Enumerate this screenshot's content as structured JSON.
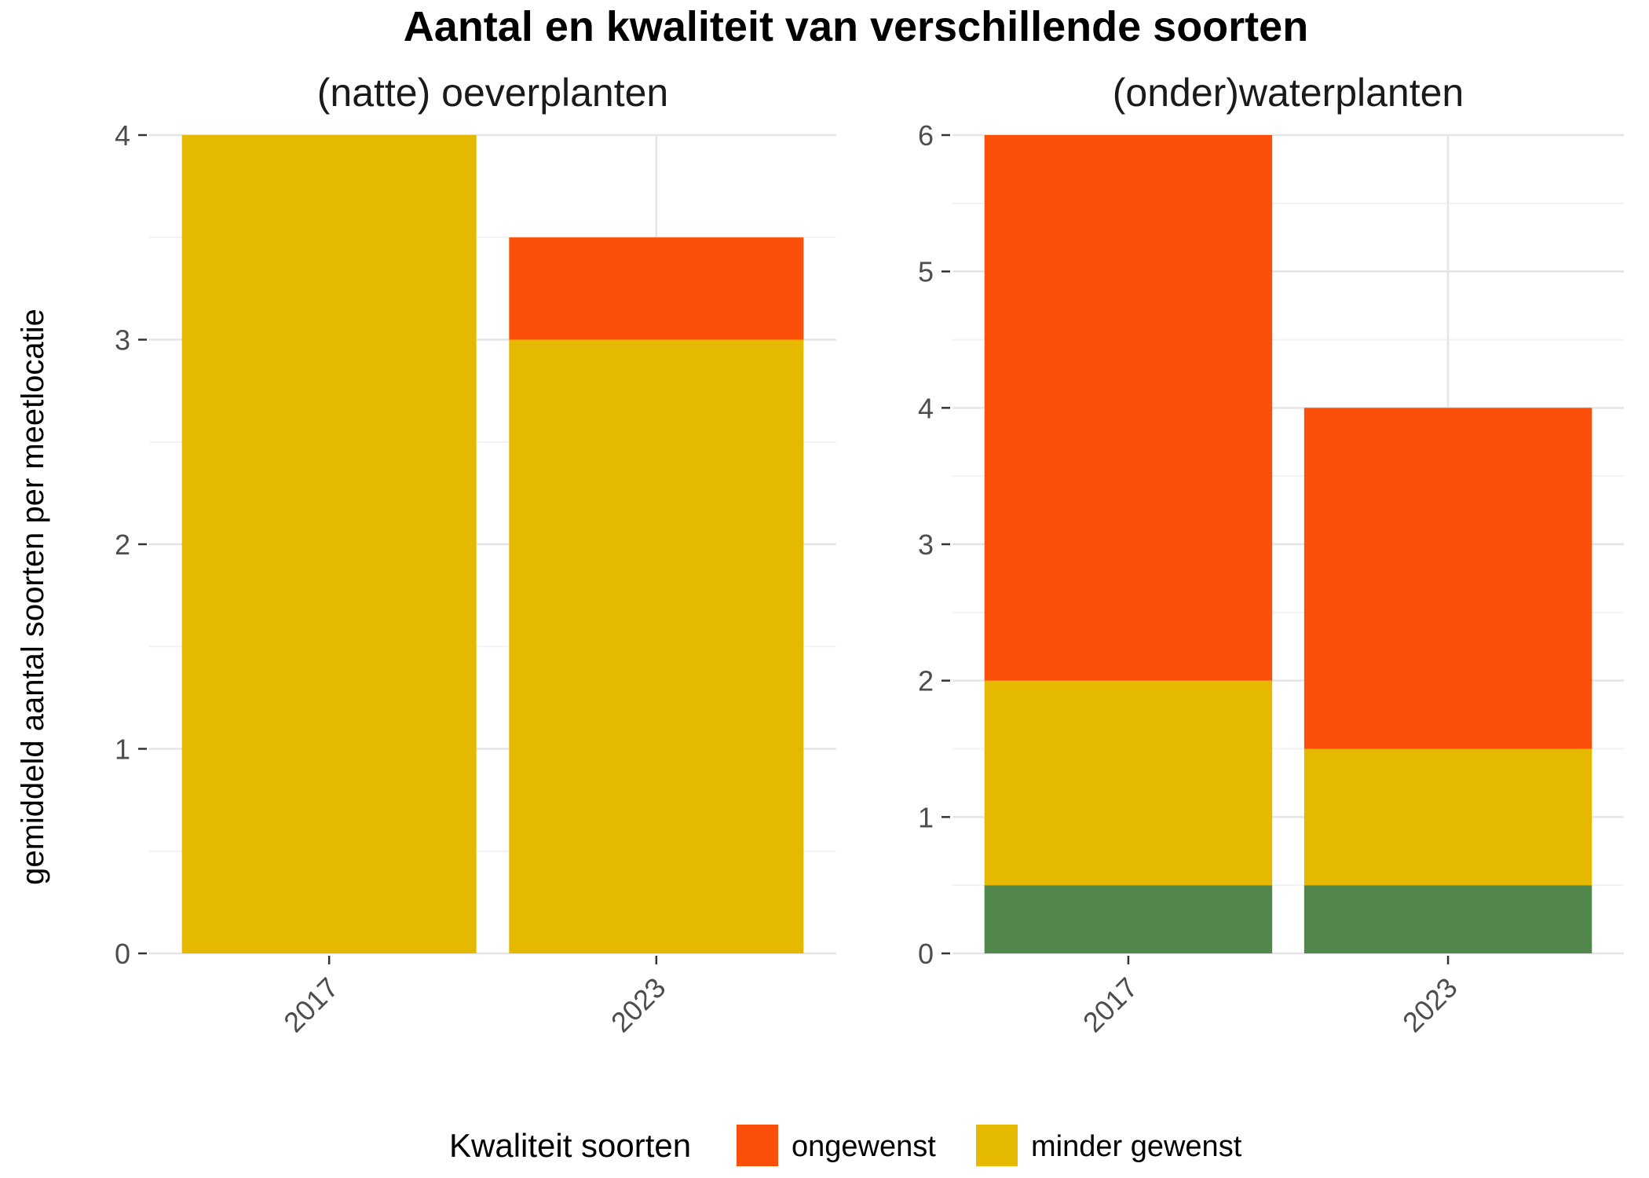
{
  "chart_data": {
    "type": "bar",
    "stacked": true,
    "title": "Aantal en kwaliteit van verschillende soorten",
    "ylabel": "gemiddeld aantal soorten per meetlocatie",
    "xlabel": "",
    "grid": true,
    "legend": {
      "title": "Kwaliteit soorten",
      "position": "bottom",
      "entries": [
        {
          "name": "ongewenst",
          "color": "#FC4F0A"
        },
        {
          "name": "minder gewenst",
          "color": "#E4B900"
        }
      ]
    },
    "panels": [
      {
        "title": "(natte) oeverplanten",
        "categories": [
          "2017",
          "2023"
        ],
        "ylim": [
          0,
          4
        ],
        "yticks": [
          "0",
          "1",
          "2",
          "3",
          "4"
        ],
        "series": [
          {
            "key": "good",
            "color": "#52874B",
            "values": [
              0,
              0
            ]
          },
          {
            "name": "minder gewenst",
            "color": "#E4B900",
            "values": [
              4,
              3
            ]
          },
          {
            "name": "ongewenst",
            "color": "#FC4F0A",
            "values": [
              0,
              0.5
            ]
          }
        ]
      },
      {
        "title": "(onder)waterplanten",
        "categories": [
          "2017",
          "2023"
        ],
        "ylim": [
          0,
          6
        ],
        "yticks": [
          "0",
          "1",
          "2",
          "3",
          "4",
          "5",
          "6"
        ],
        "series": [
          {
            "key": "good",
            "color": "#52874B",
            "values": [
              0.5,
              0.5
            ]
          },
          {
            "name": "minder gewenst",
            "color": "#E4B900",
            "values": [
              1.5,
              1.0
            ]
          },
          {
            "name": "ongewenst",
            "color": "#FC4F0A",
            "values": [
              4,
              2.5
            ]
          }
        ]
      }
    ]
  }
}
